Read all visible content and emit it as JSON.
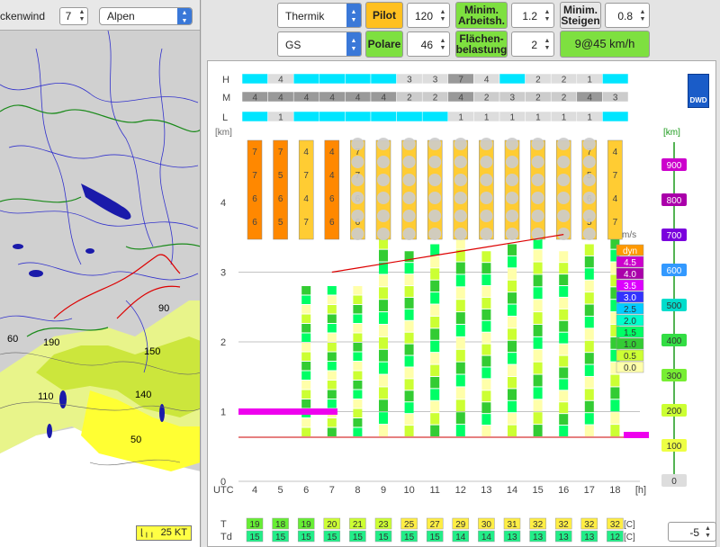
{
  "left": {
    "wind_label": "ckenwind",
    "wind_value": "7",
    "region_select": "Alpen",
    "map_labels": [
      {
        "text": "90"
      },
      {
        "text": "60"
      },
      {
        "text": "190"
      },
      {
        "text": "150"
      },
      {
        "text": "110"
      },
      {
        "text": "140"
      },
      {
        "text": "50"
      }
    ],
    "scale_label": "25 KT"
  },
  "controls": {
    "mode_select": "Thermik",
    "pilot_label": "Pilot",
    "pilot_value": "120",
    "min_arbeit_label": "Minim. Arbeitsh.",
    "min_arbeit_value": "1.2",
    "min_steigen_label": "Minim. Steigen",
    "min_steigen_value": "0.8",
    "glider_select": "GS",
    "polare_label": "Polare",
    "polare_value": "46",
    "flaechen_label": "Flächen-belastung",
    "flaechen_value": "2",
    "result_value": "9@45 km/h"
  },
  "chart": {
    "logo_text": "DWD",
    "row_labels": [
      "H",
      "M",
      "L"
    ],
    "km_label_left": "[km]",
    "km_label_right": "[km]",
    "y_ticks_left": [
      "4",
      "3",
      "2",
      "1",
      "0"
    ],
    "y_ticks_right": [
      "900",
      "800",
      "700",
      "600",
      "500",
      "400",
      "300",
      "200",
      "100",
      "0"
    ],
    "x_axis_label": "UTC",
    "x_ticks": [
      "4",
      "5",
      "6",
      "7",
      "8",
      "9",
      "10",
      "11",
      "12",
      "13",
      "14",
      "15",
      "16",
      "17",
      "18",
      "[h]"
    ],
    "H_values": [
      "",
      "4",
      "",
      "",
      "",
      "",
      "3",
      "3",
      "7",
      "4",
      "",
      "2",
      "2",
      "1",
      ""
    ],
    "M_values": [
      "4",
      "4",
      "4",
      "4",
      "4",
      "4",
      "2",
      "2",
      "4",
      "2",
      "3",
      "2",
      "2",
      "4",
      "3"
    ],
    "L_values": [
      "",
      "1",
      "",
      "",
      "",
      "",
      "",
      "",
      "1",
      "1",
      "1",
      "1",
      "1",
      "1",
      ""
    ],
    "legend_title": "m/s",
    "legend_items": [
      {
        "label": "dyn",
        "color": "#ff9900"
      },
      {
        "label": "4.5",
        "color": "#cc00cc"
      },
      {
        "label": "4.0",
        "color": "#aa00aa"
      },
      {
        "label": "3.5",
        "color": "#dd00ff"
      },
      {
        "label": "3.0",
        "color": "#3333ff"
      },
      {
        "label": "2.5",
        "color": "#00ccff"
      },
      {
        "label": "2.0",
        "color": "#00ffcc"
      },
      {
        "label": "1.5",
        "color": "#00ff66"
      },
      {
        "label": "1.0",
        "color": "#33cc33"
      },
      {
        "label": "0.5",
        "color": "#ccff33"
      },
      {
        "label": "0.0",
        "color": "#ffffaa"
      }
    ],
    "T_label": "T",
    "Td_label": "Td",
    "T_values": [
      "19",
      "18",
      "19",
      "20",
      "21",
      "23",
      "25",
      "27",
      "29",
      "30",
      "31",
      "32",
      "32",
      "32",
      "32"
    ],
    "Td_values": [
      "15",
      "15",
      "15",
      "15",
      "15",
      "15",
      "15",
      "15",
      "14",
      "14",
      "13",
      "13",
      "13",
      "13",
      "12"
    ],
    "unit_c": "[C]",
    "bottom_value": "-5"
  }
}
